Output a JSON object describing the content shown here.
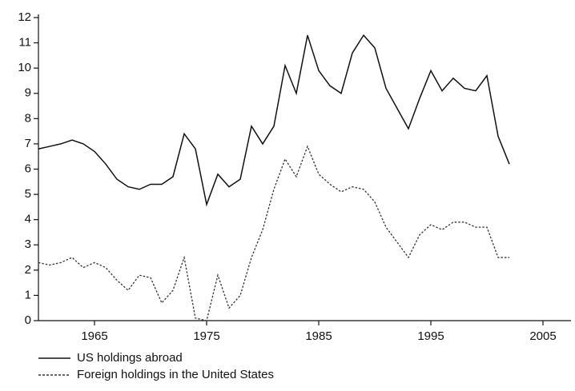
{
  "chart_data": {
    "type": "line",
    "x": [
      1960,
      1961,
      1962,
      1963,
      1964,
      1965,
      1966,
      1967,
      1968,
      1969,
      1970,
      1971,
      1972,
      1973,
      1974,
      1975,
      1976,
      1977,
      1978,
      1979,
      1980,
      1981,
      1982,
      1983,
      1984,
      1985,
      1986,
      1987,
      1988,
      1989,
      1990,
      1991,
      1992,
      1993,
      1994,
      1995,
      1996,
      1997,
      1998,
      1999,
      2000,
      2001,
      2002
    ],
    "series": [
      {
        "name": "US holdings abroad",
        "color": "#111111",
        "dash": "solid",
        "values": [
          6.8,
          6.9,
          7.0,
          7.15,
          7.0,
          6.7,
          6.2,
          5.6,
          5.3,
          5.2,
          5.4,
          5.4,
          5.7,
          7.4,
          6.8,
          4.6,
          5.8,
          5.3,
          5.6,
          7.7,
          7.0,
          7.7,
          10.1,
          9.0,
          11.3,
          9.9,
          9.3,
          9.0,
          10.6,
          11.3,
          10.8,
          9.2,
          8.4,
          7.6,
          8.8,
          9.9,
          9.1,
          9.6,
          9.2,
          9.1,
          9.7,
          7.3,
          6.2
        ]
      },
      {
        "name": "Foreign holdings in the United States",
        "color": "#333333",
        "dash": "dashed",
        "values": [
          2.3,
          2.2,
          2.3,
          2.5,
          2.1,
          2.3,
          2.1,
          1.6,
          1.2,
          1.8,
          1.7,
          0.7,
          1.2,
          2.5,
          0.1,
          0,
          1.8,
          0.5,
          1.0,
          2.5,
          3.6,
          5.2,
          6.4,
          5.7,
          6.9,
          5.8,
          5.4,
          5.1,
          5.3,
          5.2,
          4.7,
          3.7,
          3.1,
          2.5,
          3.4,
          3.8,
          3.6,
          3.9,
          3.9,
          3.7,
          3.7,
          2.5,
          2.5
        ]
      }
    ],
    "xlim": [
      1960,
      2007.5
    ],
    "xticks": [
      1965,
      1975,
      1985,
      1995,
      2005
    ],
    "ylim": [
      0,
      12
    ],
    "yticks": [
      0,
      1,
      2,
      3,
      4,
      5,
      6,
      7,
      8,
      9,
      10,
      11,
      12
    ],
    "legend": "bottom-left"
  }
}
